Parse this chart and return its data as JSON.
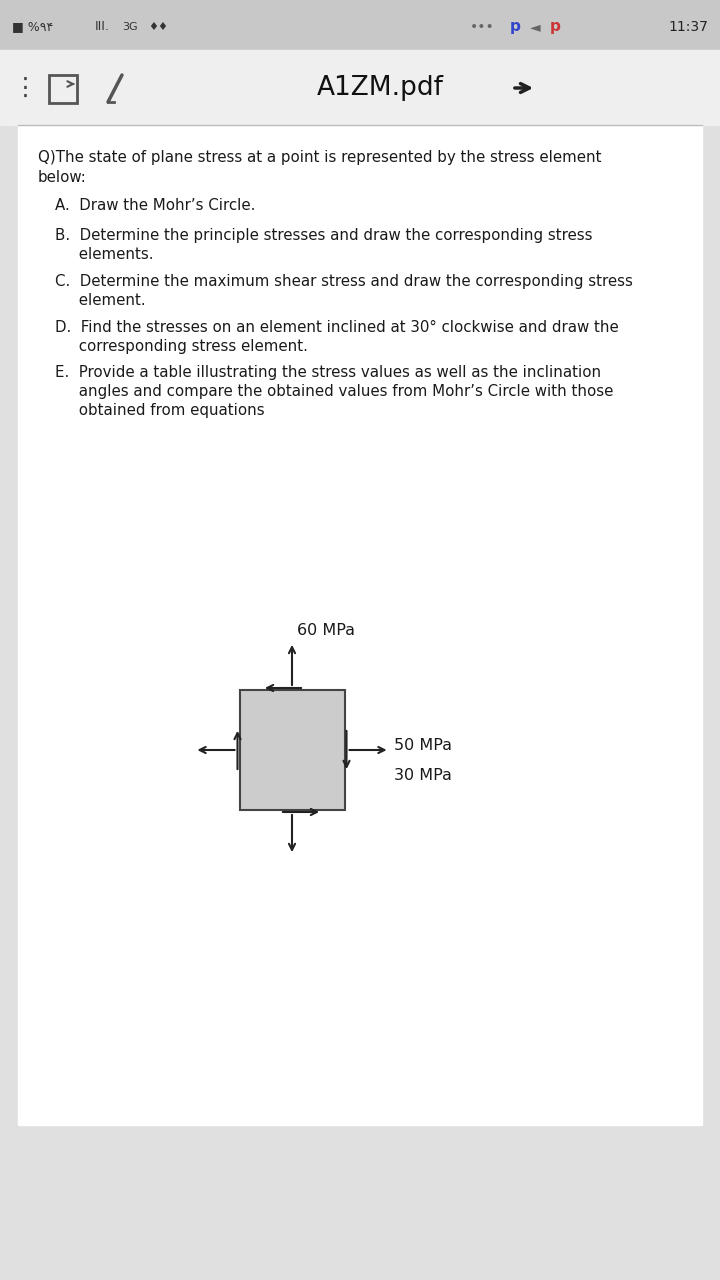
{
  "bg_gray": "#e0e0e0",
  "bg_white": "#ffffff",
  "bg_toolbar": "#eeeeee",
  "text_dark": "#1a1a1a",
  "text_gray": "#555555",
  "arrow_color": "#222222",
  "box_fill": "#cccccc",
  "box_edge": "#444444",
  "label_60": "60 MPa",
  "label_50": "50 MPa",
  "label_30": "30 MPa",
  "title": "A1ZM.pdf",
  "q_line1": "Q)The state of plane stress at a point is represented by the stress element",
  "q_line2": "below:",
  "item_A": "A.  Draw the Mohr’s Circle.",
  "item_B1": "B.  Determine the principle stresses and draw the corresponding stress",
  "item_B2": "     elements.",
  "item_C1": "C.  Determine the maximum shear stress and draw the corresponding stress",
  "item_C2": "     element.",
  "item_D1": "D.  Find the stresses on an element inclined at 30° clockwise and draw the",
  "item_D2": "     corresponding stress element.",
  "item_E1": "E.  Provide a table illustrating the stress values as well as the inclination",
  "item_E2": "     angles and compare the obtained values from Mohr’s Circle with those",
  "item_E3": "     obtained from equations",
  "fs_body": 10.8,
  "fs_label": 11.5,
  "fs_title": 19
}
